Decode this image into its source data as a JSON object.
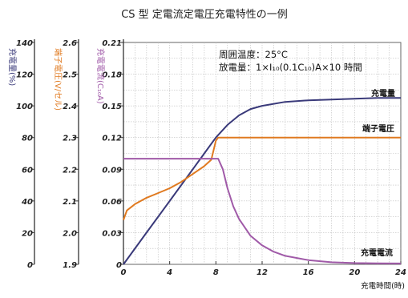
{
  "chart_data": {
    "type": "line",
    "title": "CS 型 定電流定電圧充電特性の一例",
    "annotation_lines": [
      "周囲温度：25°C",
      "放電量：1×I₁₀(0.1C₁₀)A×10 時間"
    ],
    "xlabel": "充電時間(時)",
    "xlim": [
      0,
      24
    ],
    "x_ticks": [
      0,
      4,
      8,
      12,
      16,
      20,
      24
    ],
    "x_tick_labels": [
      "0",
      "4",
      "8",
      "12",
      "16",
      "20",
      "24"
    ],
    "grid": true,
    "axes": [
      {
        "id": "charge",
        "label": "充電量(%)",
        "color": "#3a3a7a",
        "ylim": [
          0,
          140
        ],
        "ticks": [
          0,
          20,
          40,
          60,
          80,
          100,
          120,
          140
        ],
        "tick_labels": [
          "0",
          "20",
          "40",
          "60",
          "80",
          "100",
          "120",
          "140"
        ]
      },
      {
        "id": "voltage",
        "label": "端子電圧(V/セル)",
        "color": "#e07a20",
        "ylim": [
          1.9,
          2.6
        ],
        "ticks": [
          1.9,
          2.0,
          2.1,
          2.2,
          2.3,
          2.4,
          2.5,
          2.6
        ],
        "tick_labels": [
          "1.9",
          "2.0",
          "2.1",
          "2.2",
          "2.3",
          "2.4",
          "2.5",
          "2.6"
        ]
      },
      {
        "id": "current",
        "label": "充電電流(C₁₀A)",
        "color": "#a05aa8",
        "ylim": [
          0,
          0.21
        ],
        "ticks": [
          0,
          0.03,
          0.06,
          0.09,
          0.12,
          0.15,
          0.18,
          0.21
        ],
        "tick_labels": [
          "0",
          "0.03",
          "0.06",
          "0.09",
          "0.12",
          "0.15",
          "0.18",
          "0.21"
        ]
      }
    ],
    "series": [
      {
        "name": "充電量",
        "axis": "charge",
        "color": "#3a3a7a",
        "x": [
          0,
          2,
          4,
          6,
          7,
          8,
          9,
          10,
          11,
          12,
          14,
          16,
          18,
          20,
          22,
          24
        ],
        "y": [
          0,
          20,
          40,
          60,
          70,
          80,
          88,
          94,
          98,
          100,
          102.5,
          103.5,
          104,
          104.5,
          105,
          105
        ]
      },
      {
        "name": "端子電圧",
        "axis": "voltage",
        "color": "#e07a20",
        "x": [
          0,
          0.3,
          1,
          2,
          3,
          4,
          5,
          6,
          7,
          7.6,
          8,
          8.2,
          10,
          12,
          16,
          20,
          24
        ],
        "y": [
          2.04,
          2.07,
          2.09,
          2.11,
          2.125,
          2.14,
          2.16,
          2.185,
          2.21,
          2.23,
          2.29,
          2.3,
          2.3,
          2.3,
          2.3,
          2.3,
          2.3
        ]
      },
      {
        "name": "充電電流",
        "axis": "current",
        "color": "#a05aa8",
        "x": [
          0,
          7.5,
          8.2,
          8.6,
          9,
          9.5,
          10,
          11,
          12,
          13,
          14,
          16,
          18,
          20,
          22,
          24
        ],
        "y": [
          0.1,
          0.1,
          0.1,
          0.09,
          0.072,
          0.055,
          0.043,
          0.027,
          0.018,
          0.012,
          0.008,
          0.004,
          0.002,
          0.0012,
          0.001,
          0.0008
        ]
      }
    ]
  }
}
